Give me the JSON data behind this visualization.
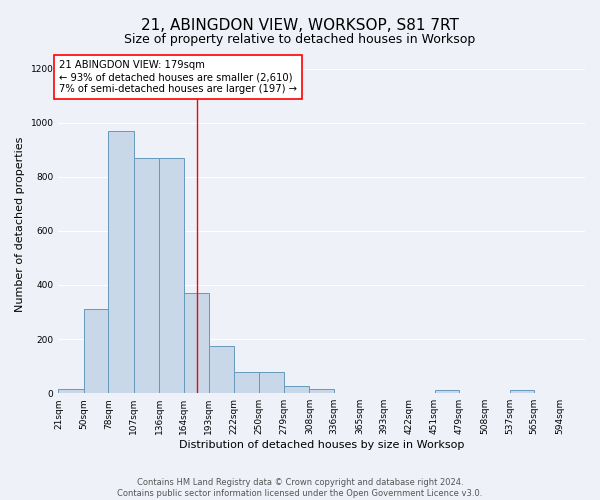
{
  "title": "21, ABINGDON VIEW, WORKSOP, S81 7RT",
  "subtitle": "Size of property relative to detached houses in Worksop",
  "xlabel": "Distribution of detached houses by size in Worksop",
  "ylabel": "Number of detached properties",
  "bin_labels": [
    "21sqm",
    "50sqm",
    "78sqm",
    "107sqm",
    "136sqm",
    "164sqm",
    "193sqm",
    "222sqm",
    "250sqm",
    "279sqm",
    "308sqm",
    "336sqm",
    "365sqm",
    "393sqm",
    "422sqm",
    "451sqm",
    "479sqm",
    "508sqm",
    "537sqm",
    "565sqm",
    "594sqm"
  ],
  "bin_edges": [
    21,
    50,
    78,
    107,
    136,
    164,
    193,
    222,
    250,
    279,
    308,
    336,
    365,
    393,
    422,
    451,
    479,
    508,
    537,
    565,
    594
  ],
  "bar_heights": [
    15,
    310,
    970,
    870,
    870,
    370,
    175,
    80,
    80,
    25,
    15,
    0,
    0,
    0,
    0,
    12,
    0,
    0,
    12,
    0,
    0
  ],
  "bar_color": "#c8d8e8",
  "bar_edge_color": "#6699bb",
  "vline_x": 179,
  "vline_color": "red",
  "annotation_text": "21 ABINGDON VIEW: 179sqm\n← 93% of detached houses are smaller (2,610)\n7% of semi-detached houses are larger (197) →",
  "annotation_box_color": "white",
  "annotation_box_edge": "red",
  "ylim": [
    0,
    1250
  ],
  "yticks": [
    0,
    200,
    400,
    600,
    800,
    1000,
    1200
  ],
  "footer": "Contains HM Land Registry data © Crown copyright and database right 2024.\nContains public sector information licensed under the Open Government Licence v3.0.",
  "bg_color": "#eef2f8",
  "grid_color": "#ffffff",
  "title_fontsize": 11,
  "subtitle_fontsize": 9,
  "label_fontsize": 8,
  "tick_fontsize": 6.5,
  "footer_fontsize": 6
}
